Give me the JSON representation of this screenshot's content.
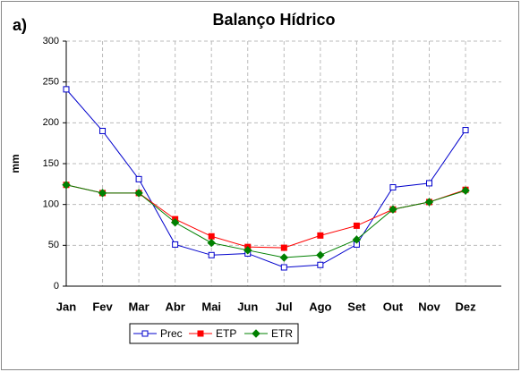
{
  "chart_data": {
    "type": "line",
    "title": "Balanço Hídrico",
    "panel_label": "a)",
    "ylabel": "mm",
    "categories": [
      "Jan",
      "Fev",
      "Mar",
      "Abr",
      "Mai",
      "Jun",
      "Jul",
      "Ago",
      "Set",
      "Out",
      "Nov",
      "Dez"
    ],
    "series": [
      {
        "name": "Prec",
        "color": "#0000cc",
        "marker": "open-square",
        "values": [
          241,
          190,
          131,
          51,
          38,
          40,
          23,
          26,
          51,
          121,
          126,
          191
        ]
      },
      {
        "name": "ETP",
        "color": "#ff0000",
        "marker": "square",
        "values": [
          124,
          114,
          114,
          82,
          61,
          48,
          47,
          62,
          74,
          94,
          103,
          118
        ]
      },
      {
        "name": "ETR",
        "color": "#008000",
        "marker": "diamond",
        "values": [
          124,
          114,
          114,
          78,
          53,
          44,
          35,
          38,
          57,
          94,
          103,
          117
        ]
      }
    ],
    "ylim": [
      0,
      300
    ],
    "yticks": [
      0,
      50,
      100,
      150,
      200,
      250,
      300
    ],
    "grid": true,
    "legend": "bottom"
  }
}
